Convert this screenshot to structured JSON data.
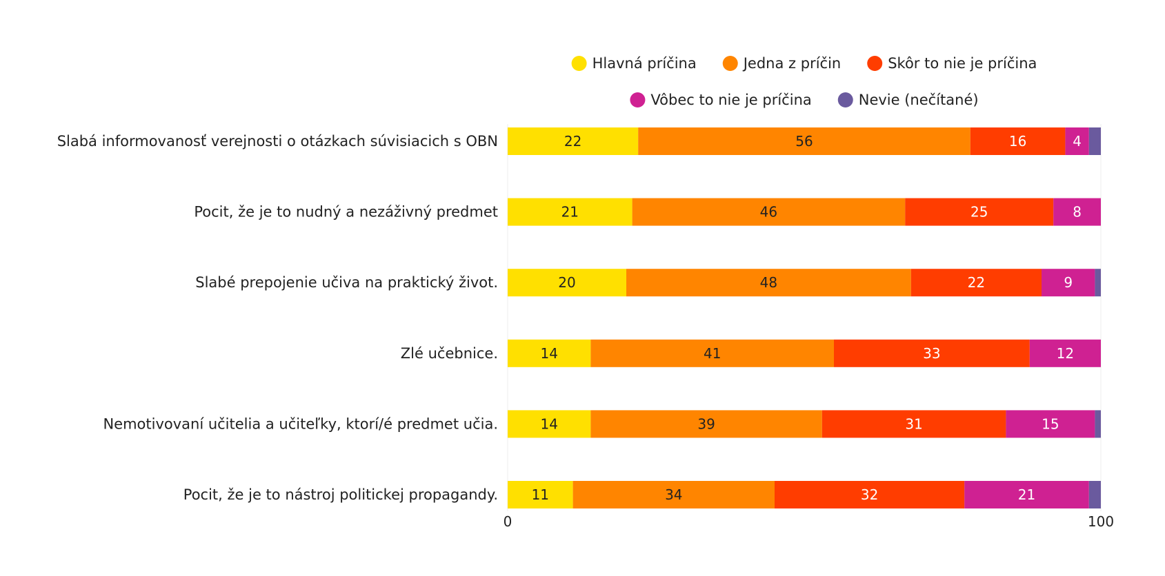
{
  "chart_data": {
    "type": "bar",
    "orientation": "horizontal",
    "stacked": true,
    "title": "",
    "xlabel": "",
    "ylabel": "",
    "xlim": [
      0,
      100
    ],
    "x_ticks": [
      "0",
      "100"
    ],
    "legend_position": "top",
    "categories": [
      "Slabá informovanosť verejnosti o otázkach súvisiacich s OBN",
      "Pocit, že je to nudný a nezáživný predmet",
      "Slabé prepojenie učiva na praktický život.",
      "Zlé učebnice.",
      "Nemotivovaní učitelia a učiteľky, ktorí/é predmet učia.",
      "Pocit, že je to nástroj politickej propagandy."
    ],
    "series": [
      {
        "name": "Hlavná príčina",
        "color": "#FFE000",
        "label_color": "#222222",
        "values": [
          22,
          21,
          20,
          14,
          14,
          11
        ],
        "labels": [
          "22",
          "21",
          "20",
          "14",
          "14",
          "11"
        ]
      },
      {
        "name": "Jedna z príčin",
        "color": "#FF8500",
        "label_color": "#222222",
        "values": [
          56,
          46,
          48,
          41,
          39,
          34
        ],
        "labels": [
          "56",
          "46",
          "48",
          "41",
          "39",
          "34"
        ]
      },
      {
        "name": "Skôr to nie je príčina",
        "color": "#FF3D00",
        "label_color": "#ffffff",
        "values": [
          16,
          25,
          22,
          33,
          31,
          32
        ],
        "labels": [
          "16",
          "25",
          "22",
          "33",
          "31",
          "32"
        ]
      },
      {
        "name": "Vôbec to nie je príčina",
        "color": "#CF2192",
        "label_color": "#ffffff",
        "values": [
          4,
          8,
          9,
          12,
          15,
          21
        ],
        "labels": [
          "4",
          "8",
          "9",
          "12",
          "15",
          "21"
        ]
      },
      {
        "name": "Nevie (nečítané)",
        "color": "#6A5A9E",
        "label_color": "#ffffff",
        "values": [
          2,
          0,
          1,
          0,
          1,
          2
        ],
        "labels": [
          "",
          "",
          "",
          "",
          "",
          ""
        ]
      }
    ]
  }
}
